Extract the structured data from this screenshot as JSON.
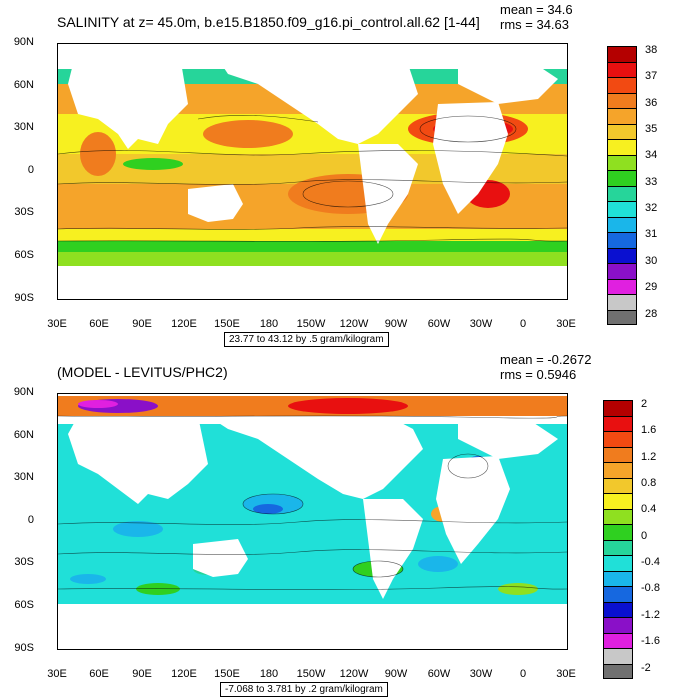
{
  "panels": [
    {
      "title": "SALINITY at z=  45.0m, b.e15.B1850.f09_g16.pi_control.all.62 [1-44]",
      "mean": "mean = 34.6",
      "rms": "rms = 34.63",
      "range": "23.77 to 43.12 by .5 gram/kilogram",
      "colorbar": {
        "labels": [
          "38",
          "37",
          "36",
          "35",
          "34",
          "33",
          "32",
          "31",
          "30",
          "29",
          "28"
        ],
        "colors": [
          "#b40000",
          "#e81010",
          "#f24a12",
          "#f07c1e",
          "#f5a42a",
          "#f2c82c",
          "#f7f020",
          "#8fe020",
          "#2fd020",
          "#26d59a",
          "#20e0d8",
          "#1ab6ea",
          "#1668e0",
          "#0a10d0",
          "#8a10c8",
          "#e020e0",
          "#c8c8c8",
          "#707070"
        ]
      },
      "yticks": [
        "90N",
        "60N",
        "30N",
        "0",
        "30S",
        "60S",
        "90S"
      ],
      "xticks": [
        "30E",
        "60E",
        "90E",
        "120E",
        "150E",
        "180",
        "150W",
        "120W",
        "90W",
        "60W",
        "30W",
        "0",
        "30E"
      ]
    },
    {
      "title": "(MODEL - LEVITUS/PHC2)",
      "mean": "mean = -0.2672",
      "rms": "rms = 0.5946",
      "range": "-7.068 to 3.781 by .2 gram/kilogram",
      "colorbar": {
        "labels": [
          "2",
          "1.6",
          "1.2",
          "0.8",
          "0.4",
          "0",
          "-0.4",
          "-0.8",
          "-1.2",
          "-1.6",
          "-2"
        ],
        "colors": [
          "#b40000",
          "#e81010",
          "#f24a12",
          "#f07c1e",
          "#f5a42a",
          "#f2c82c",
          "#f7f020",
          "#8fe020",
          "#2fd020",
          "#26d59a",
          "#20e0d8",
          "#1ab6ea",
          "#1668e0",
          "#0a10d0",
          "#8a10c8",
          "#e020e0",
          "#c8c8c8",
          "#707070"
        ]
      },
      "yticks": [
        "90N",
        "60N",
        "30N",
        "0",
        "30S",
        "60S",
        "90S"
      ],
      "xticks": [
        "30E",
        "60E",
        "90E",
        "120E",
        "150E",
        "180",
        "150W",
        "120W",
        "90W",
        "60W",
        "30W",
        "0",
        "30E"
      ]
    }
  ]
}
